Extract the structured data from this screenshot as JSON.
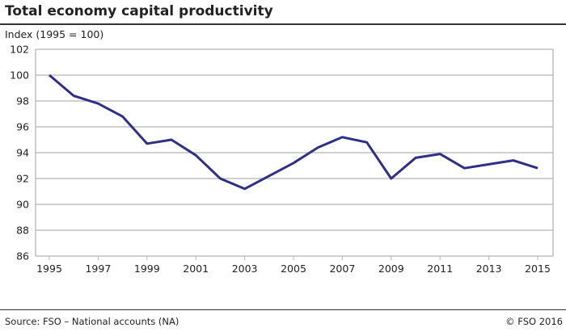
{
  "chart_data": {
    "type": "line",
    "title": "Total economy capital productivity",
    "ylabel": "Index (1995 = 100)",
    "xlabel": "",
    "x": [
      1995,
      1996,
      1997,
      1998,
      1999,
      2000,
      2001,
      2002,
      2003,
      2004,
      2005,
      2006,
      2007,
      2008,
      2009,
      2010,
      2011,
      2012,
      2013,
      2014,
      2015
    ],
    "series": [
      {
        "values": [
          100,
          98.4,
          97.8,
          96.8,
          94.7,
          95.0,
          93.8,
          92.0,
          91.2,
          92.2,
          93.2,
          94.4,
          95.2,
          94.8,
          92.0,
          93.6,
          93.9,
          92.8,
          93.1,
          93.4,
          92.8
        ],
        "color": "#2e3085"
      }
    ],
    "ylim": [
      86,
      102
    ],
    "xlim": [
      1995,
      2015
    ],
    "yticks": [
      86,
      88,
      90,
      92,
      94,
      96,
      98,
      100,
      102
    ],
    "xticks": [
      1995,
      1997,
      1999,
      2001,
      2003,
      2005,
      2007,
      2009,
      2011,
      2013,
      2015
    ],
    "grid": true,
    "legend": "none"
  },
  "footer": {
    "source": "Source: FSO – National accounts (NA)",
    "copyright": "© FSO 2016"
  }
}
